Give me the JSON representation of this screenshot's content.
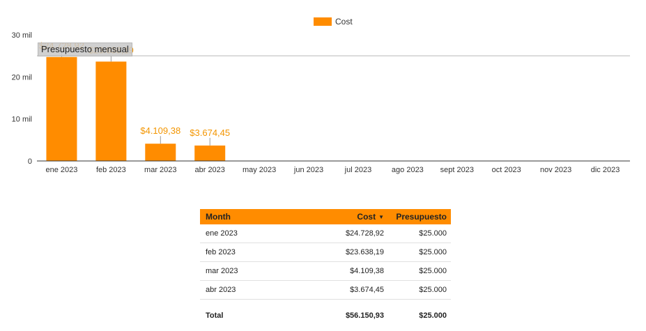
{
  "colors": {
    "series": "#ff8c00",
    "label": "#f39500",
    "axis": "#333333",
    "gridline": "#cfcfcf",
    "table_header_bg": "#ff8c00"
  },
  "chart_data": {
    "type": "bar",
    "categories": [
      "ene 2023",
      "feb 2023",
      "mar 2023",
      "abr 2023",
      "may 2023",
      "jun 2023",
      "jul 2023",
      "ago 2023",
      "sept 2023",
      "oct 2023",
      "nov 2023",
      "dic 2023"
    ],
    "series": [
      {
        "name": "Cost",
        "values": [
          24728.92,
          23638.19,
          4109.38,
          3674.45,
          null,
          null,
          null,
          null,
          null,
          null,
          null,
          null
        ]
      }
    ],
    "data_labels": [
      "$24.728,92",
      "$23.638,19",
      "$4.109,38",
      "$3.674,45",
      "",
      "",
      "",
      "",
      "",
      "",
      "",
      ""
    ],
    "ylim": [
      0,
      30000
    ],
    "yticks": [
      0,
      10000,
      20000,
      30000
    ],
    "ytick_labels": [
      "0",
      "10 mil",
      "20 mil",
      "30 mil"
    ],
    "reference_line": {
      "label": "Presupuesto mensual",
      "value": 25000
    },
    "legend": {
      "position": "top-center"
    },
    "grid": false
  },
  "table": {
    "headers": {
      "month": "Month",
      "cost": "Cost",
      "budget": "Presupuesto"
    },
    "sort_icon": "sort-down-icon",
    "rows": [
      {
        "month": "ene 2023",
        "cost": "$24.728,92",
        "budget": "$25.000"
      },
      {
        "month": "feb 2023",
        "cost": "$23.638,19",
        "budget": "$25.000"
      },
      {
        "month": "mar 2023",
        "cost": "$4.109,38",
        "budget": "$25.000"
      },
      {
        "month": "abr 2023",
        "cost": "$3.674,45",
        "budget": "$25.000"
      }
    ],
    "total": {
      "label": "Total",
      "cost": "$56.150,93",
      "budget": "$25.000"
    }
  }
}
